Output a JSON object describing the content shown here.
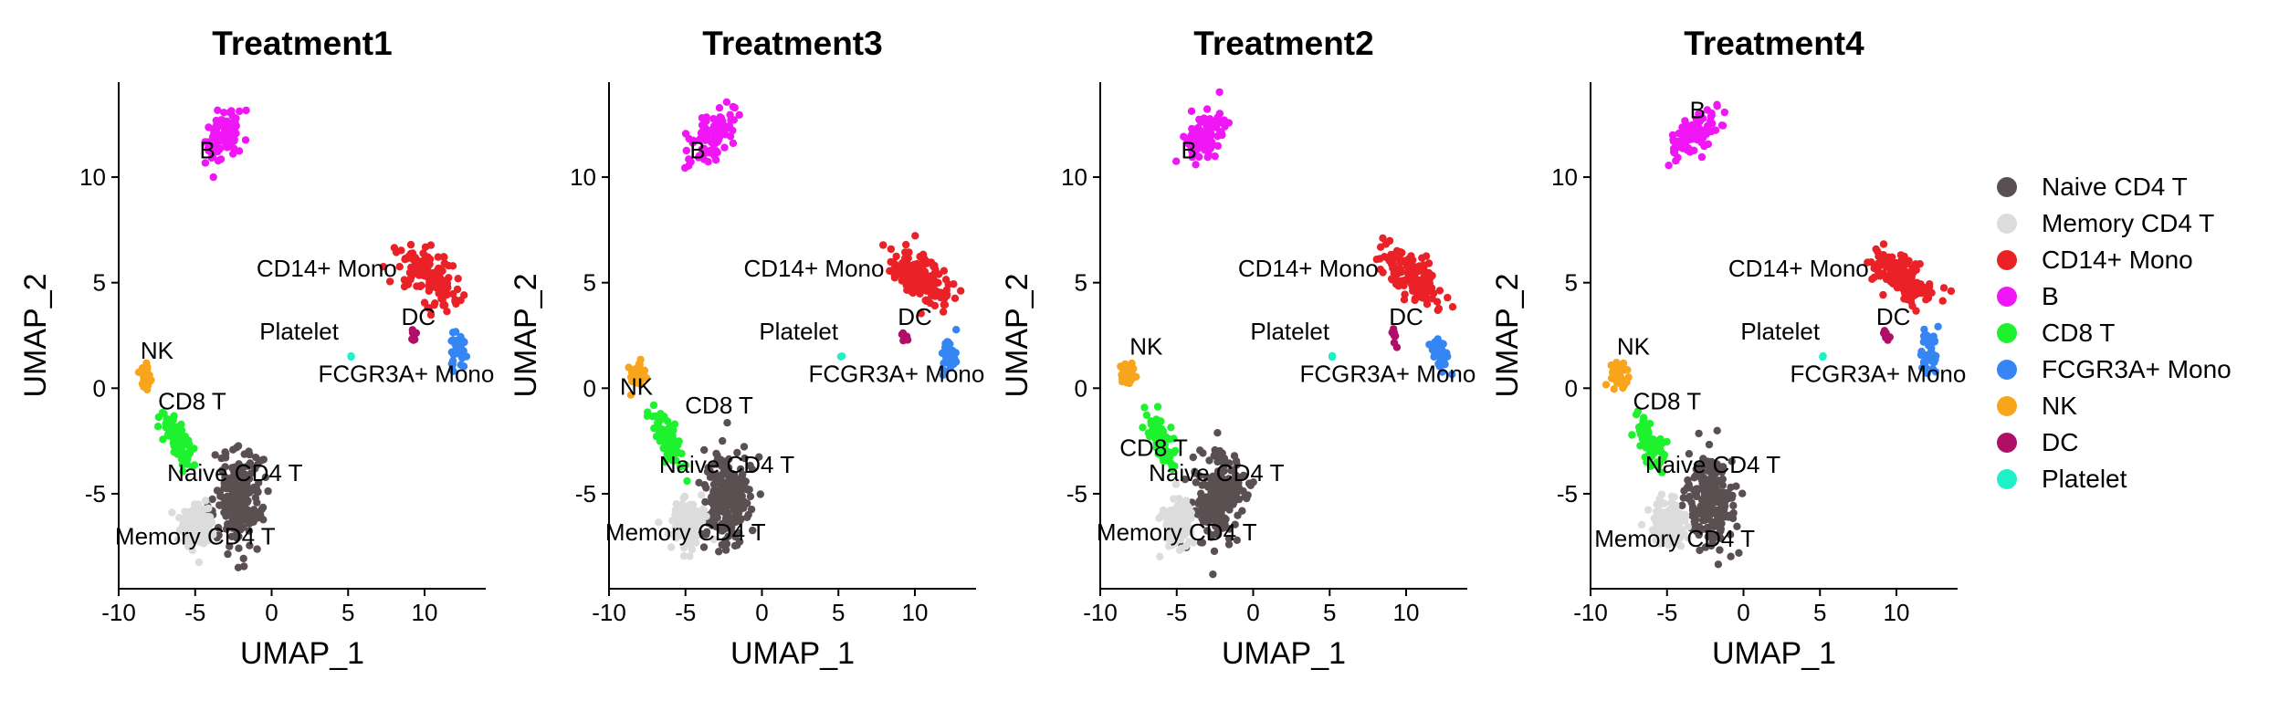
{
  "chart_data": {
    "type": "scatter",
    "xlabel": "UMAP_1",
    "ylabel": "UMAP_2",
    "xlim": [
      -10,
      14
    ],
    "ylim": [
      -9.5,
      14.5
    ],
    "xticks": [
      -10,
      -5,
      0,
      5,
      10
    ],
    "yticks": [
      -5,
      0,
      5,
      10
    ],
    "xtick_labels": [
      "-10",
      "-5",
      "0",
      "5",
      "10"
    ],
    "ytick_labels": [
      "-5",
      "0",
      "5",
      "10"
    ],
    "grid": false,
    "legend_position": "right",
    "legend": [
      {
        "name": "Naive CD4 T",
        "color": "#5a5052"
      },
      {
        "name": "Memory CD4 T",
        "color": "#dcdcdc"
      },
      {
        "name": "CD14+ Mono",
        "color": "#ea2126"
      },
      {
        "name": "B",
        "color": "#f016f5"
      },
      {
        "name": "CD8 T",
        "color": "#1ef22f"
      },
      {
        "name": "FCGR3A+ Mono",
        "color": "#3586f3"
      },
      {
        "name": "NK",
        "color": "#f9a51b"
      },
      {
        "name": "DC",
        "color": "#b00f68"
      },
      {
        "name": "Platelet",
        "color": "#20f0c8"
      }
    ],
    "clusters": [
      {
        "name": "B",
        "color": "#f016f5",
        "center": [
          -3.2,
          12.0
        ],
        "spread": [
          1.5,
          0.85
        ],
        "angle": 35,
        "n": 95
      },
      {
        "name": "CD14+ Mono",
        "color": "#ea2126",
        "center": [
          10.3,
          5.3
        ],
        "spread": [
          2.0,
          0.9
        ],
        "angle": -28,
        "n": 150
      },
      {
        "name": "FCGR3A+ Mono",
        "color": "#3586f3",
        "center": [
          12.2,
          1.7
        ],
        "spread": [
          0.45,
          0.8
        ],
        "angle": 0,
        "n": 40
      },
      {
        "name": "DC",
        "color": "#b00f68",
        "center": [
          9.3,
          2.5
        ],
        "spread": [
          0.18,
          0.35
        ],
        "angle": 20,
        "n": 8
      },
      {
        "name": "Platelet",
        "color": "#20f0c8",
        "center": [
          5.2,
          1.5
        ],
        "spread": [
          0.05,
          0.05
        ],
        "angle": 0,
        "n": 2
      },
      {
        "name": "NK",
        "color": "#f9a51b",
        "center": [
          -8.2,
          0.6
        ],
        "spread": [
          0.55,
          0.6
        ],
        "angle": 0,
        "n": 35
      },
      {
        "name": "CD8 T",
        "color": "#1ef22f",
        "center": [
          -6.1,
          -2.5
        ],
        "spread": [
          1.3,
          0.55
        ],
        "angle": -55,
        "n": 80
      },
      {
        "name": "Naive CD4 T",
        "color": "#5a5052",
        "center": [
          -2.2,
          -5.2
        ],
        "spread": [
          1.4,
          2.0
        ],
        "angle": 0,
        "n": 230
      },
      {
        "name": "Memory CD4 T",
        "color": "#dcdcdc",
        "center": [
          -4.9,
          -6.4
        ],
        "spread": [
          1.0,
          1.0
        ],
        "angle": 0,
        "n": 130
      }
    ],
    "panels": [
      {
        "title": "Treatment1",
        "labels": [
          {
            "text": "B",
            "x": -4.2,
            "y": 10.9
          },
          {
            "text": "CD14+ Mono",
            "x": 3.6,
            "y": 5.3
          },
          {
            "text": "DC",
            "x": 9.6,
            "y": 3.0
          },
          {
            "text": "Platelet",
            "x": 1.8,
            "y": 2.3
          },
          {
            "text": "FCGR3A+ Mono",
            "x": 8.8,
            "y": 0.3
          },
          {
            "text": "NK",
            "x": -7.5,
            "y": 1.4
          },
          {
            "text": "CD8 T",
            "x": -5.2,
            "y": -1.0
          },
          {
            "text": "Naive CD4 T",
            "x": -2.4,
            "y": -4.4
          },
          {
            "text": "Memory CD4 T",
            "x": -5.0,
            "y": -7.4
          }
        ]
      },
      {
        "title": "Treatment3",
        "labels": [
          {
            "text": "B",
            "x": -4.2,
            "y": 10.9
          },
          {
            "text": "CD14+ Mono",
            "x": 3.4,
            "y": 5.3
          },
          {
            "text": "DC",
            "x": 10.0,
            "y": 3.0
          },
          {
            "text": "Platelet",
            "x": 2.4,
            "y": 2.3
          },
          {
            "text": "FCGR3A+ Mono",
            "x": 8.8,
            "y": 0.3
          },
          {
            "text": "NK",
            "x": -8.2,
            "y": -0.3
          },
          {
            "text": "CD8 T",
            "x": -2.8,
            "y": -1.2
          },
          {
            "text": "Naive CD4 T",
            "x": -2.3,
            "y": -4.0
          },
          {
            "text": "Memory CD4 T",
            "x": -5.0,
            "y": -7.2
          }
        ]
      },
      {
        "title": "Treatment2",
        "labels": [
          {
            "text": "B",
            "x": -4.2,
            "y": 10.9
          },
          {
            "text": "CD14+ Mono",
            "x": 3.6,
            "y": 5.3
          },
          {
            "text": "DC",
            "x": 10.0,
            "y": 3.0
          },
          {
            "text": "Platelet",
            "x": 2.4,
            "y": 2.3
          },
          {
            "text": "FCGR3A+ Mono",
            "x": 8.8,
            "y": 0.3
          },
          {
            "text": "NK",
            "x": -7.0,
            "y": 1.6
          },
          {
            "text": "CD8 T",
            "x": -6.5,
            "y": -3.2
          },
          {
            "text": "Naive CD4 T",
            "x": -2.4,
            "y": -4.4
          },
          {
            "text": "Memory CD4 T",
            "x": -5.0,
            "y": -7.2
          }
        ]
      },
      {
        "title": "Treatment4",
        "labels": [
          {
            "text": "B",
            "x": -3.0,
            "y": 12.8
          },
          {
            "text": "CD14+ Mono",
            "x": 3.6,
            "y": 5.3
          },
          {
            "text": "DC",
            "x": 9.8,
            "y": 3.0
          },
          {
            "text": "Platelet",
            "x": 2.4,
            "y": 2.3
          },
          {
            "text": "FCGR3A+ Mono",
            "x": 8.8,
            "y": 0.3
          },
          {
            "text": "NK",
            "x": -7.2,
            "y": 1.6
          },
          {
            "text": "CD8 T",
            "x": -5.0,
            "y": -1.0
          },
          {
            "text": "Naive CD4 T",
            "x": -2.0,
            "y": -4.0
          },
          {
            "text": "Memory CD4 T",
            "x": -4.5,
            "y": -7.5
          }
        ]
      }
    ]
  }
}
